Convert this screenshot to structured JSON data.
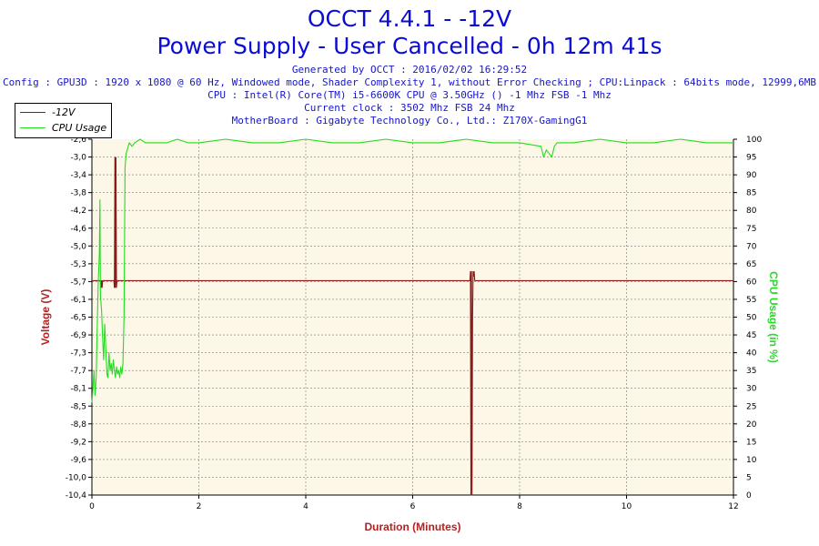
{
  "header": {
    "title_line1": "OCCT 4.4.1 - -12V",
    "title_line2": "Power Supply - User Cancelled - 0h 12m 41s",
    "generated": "Generated by OCCT : 2016/02/02 16:29:52",
    "config": "Config : GPU3D : 1920 x 1080 @ 60 Hz, Windowed mode, Shader Complexity 1, without Error Checking ; CPU:Linpack : 64bits mode, 12999,6MB",
    "cpu": "CPU : Intel(R) Core(TM) i5-6600K CPU @ 3.50GHz () -1 Mhz FSB -1 Mhz",
    "clock": "Current clock : 3502 Mhz FSB 24 Mhz",
    "motherboard": "MotherBoard : Gigabyte Technology Co., Ltd.: Z170X-GamingG1"
  },
  "colors": {
    "voltage_series": "#8b1a1a",
    "cpu_series": "#22dd22",
    "plot_background": "#fcf7e6",
    "grid": "#7a7a7a",
    "title": "#0b0bd6"
  },
  "chart_data": {
    "type": "line",
    "title": "OCCT 4.4.1 - -12V",
    "subtitle": "Power Supply - User Cancelled - 0h 12m 41s",
    "xlabel": "Duration (Minutes)",
    "ylabel": "Voltage (V)",
    "y2label": "CPU Usage (in %)",
    "xlim": [
      0,
      12
    ],
    "ylim": [
      -10.4,
      -2.6
    ],
    "y2lim": [
      0,
      100
    ],
    "x_ticks": [
      "0",
      "2",
      "4",
      "6",
      "8",
      "10",
      "12"
    ],
    "y_ticks": [
      "-2,6",
      "-3,0",
      "-3,4",
      "-3,8",
      "-4,2",
      "-4,6",
      "-5,0",
      "-5,3",
      "-5,7",
      "-6,1",
      "-6,5",
      "-6,9",
      "-7,3",
      "-7,7",
      "-8,1",
      "-8,5",
      "-8,8",
      "-9,2",
      "-9,6",
      "-10,0",
      "-10,4"
    ],
    "y2_ticks": [
      "0",
      "5",
      "10",
      "15",
      "20",
      "25",
      "30",
      "35",
      "40",
      "45",
      "50",
      "55",
      "60",
      "65",
      "70",
      "75",
      "80",
      "85",
      "90",
      "95",
      "100"
    ],
    "grid": true,
    "legend_position": "top-left",
    "series": [
      {
        "name": "-12V",
        "axis": "left",
        "x": [
          0,
          0.16,
          0.17,
          0.18,
          0.19,
          0.2,
          0.41,
          0.42,
          0.43,
          0.44,
          0.45,
          0.46,
          0.47,
          7.07,
          7.08,
          7.09,
          7.1,
          7.11,
          7.12,
          7.13,
          7.14,
          7.15,
          7.16,
          12
        ],
        "y": [
          -5.7,
          -5.7,
          -5.85,
          -5.7,
          -5.85,
          -5.7,
          -5.7,
          -5.85,
          -3.0,
          -5.85,
          -3.0,
          -5.85,
          -5.7,
          -5.7,
          -5.5,
          -10.4,
          -5.5,
          -10.4,
          -6.6,
          -5.5,
          -5.6,
          -5.5,
          -5.7,
          -5.7
        ]
      },
      {
        "name": "CPU Usage",
        "axis": "right",
        "x": [
          0,
          0.02,
          0.04,
          0.06,
          0.08,
          0.1,
          0.12,
          0.14,
          0.15,
          0.16,
          0.18,
          0.2,
          0.22,
          0.24,
          0.26,
          0.28,
          0.3,
          0.32,
          0.34,
          0.36,
          0.38,
          0.4,
          0.42,
          0.44,
          0.46,
          0.48,
          0.5,
          0.52,
          0.54,
          0.56,
          0.58,
          0.6,
          0.62,
          0.64,
          0.66,
          0.68,
          0.7,
          0.75,
          0.8,
          0.9,
          1.0,
          1.2,
          1.4,
          1.6,
          1.8,
          2.0,
          2.5,
          3.0,
          3.5,
          4.0,
          4.5,
          5.0,
          5.5,
          6.0,
          6.5,
          7.0,
          7.5,
          8.0,
          8.4,
          8.45,
          8.5,
          8.55,
          8.6,
          8.65,
          8.7,
          9.0,
          9.5,
          10.0,
          10.5,
          11.0,
          11.5,
          12.0
        ],
        "y": [
          26,
          30,
          35,
          28,
          33,
          48,
          60,
          68,
          83,
          56,
          52,
          44,
          38,
          48,
          41,
          34,
          33,
          40,
          35,
          37,
          34,
          38,
          35,
          33,
          36,
          34,
          35,
          33,
          36,
          34,
          37,
          50,
          92,
          96,
          97,
          98,
          99,
          98,
          99,
          100,
          99,
          99,
          99,
          100,
          99,
          99,
          100,
          99,
          99,
          100,
          99,
          99,
          100,
          99,
          99,
          100,
          99,
          99,
          98,
          95,
          97,
          96,
          95,
          98,
          99,
          99,
          100,
          99,
          99,
          100,
          99,
          99
        ]
      }
    ]
  }
}
